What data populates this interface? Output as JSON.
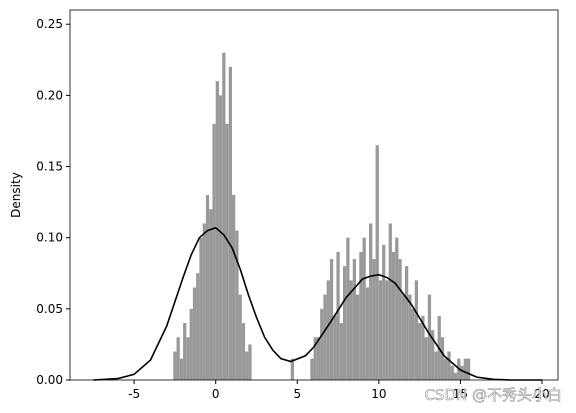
{
  "chart_data": {
    "type": "histogram",
    "ylabel": "Density",
    "watermark": "CSDN @不秀头小白",
    "bins": [
      -2.6,
      -2.4,
      -2.2,
      -2.0,
      -1.8,
      -1.6,
      -1.4,
      -1.2,
      -1.0,
      -0.8,
      -0.6,
      -0.4,
      -0.2,
      0.0,
      0.2,
      0.4,
      0.6,
      0.8,
      1.0,
      1.2,
      1.4,
      1.6,
      1.8,
      2.0,
      2.2,
      2.4,
      2.6,
      2.8,
      3.0,
      3.2,
      3.4,
      3.6,
      3.8,
      4.0,
      4.2,
      4.4,
      4.6,
      4.8,
      5.0,
      5.2,
      5.4,
      5.6,
      5.8,
      6.0,
      6.2,
      6.4,
      6.6,
      6.8,
      7.0,
      7.2,
      7.4,
      7.6,
      7.8,
      8.0,
      8.2,
      8.4,
      8.6,
      8.8,
      9.0,
      9.2,
      9.4,
      9.6,
      9.8,
      10.0,
      10.2,
      10.4,
      10.6,
      10.8,
      11.0,
      11.2,
      11.4,
      11.6,
      11.8,
      12.0,
      12.2,
      12.4,
      12.6,
      12.8,
      13.0,
      13.2,
      13.4,
      13.6,
      13.8,
      14.0,
      14.2,
      14.4,
      14.6,
      14.8,
      15.0,
      15.2,
      15.4,
      15.6
    ],
    "values": [
      0.02,
      0.03,
      0.015,
      0.04,
      0.03,
      0.05,
      0.065,
      0.075,
      0.1,
      0.11,
      0.13,
      0.12,
      0.18,
      0.21,
      0.2,
      0.23,
      0.18,
      0.22,
      0.13,
      0.105,
      0.06,
      0.04,
      0.02,
      0.025,
      0,
      0,
      0,
      0,
      0,
      0,
      0,
      0,
      0,
      0,
      0,
      0,
      0.015,
      0,
      0,
      0,
      0,
      0,
      0.015,
      0.03,
      0.03,
      0.05,
      0.06,
      0.07,
      0.085,
      0.045,
      0.09,
      0.04,
      0.08,
      0.1,
      0.07,
      0.085,
      0.06,
      0.09,
      0.1,
      0.065,
      0.11,
      0.085,
      0.165,
      0.07,
      0.095,
      0.07,
      0.11,
      0.09,
      0.1,
      0.085,
      0.06,
      0.08,
      0.06,
      0.05,
      0.07,
      0.04,
      0.045,
      0.03,
      0.06,
      0.035,
      0.02,
      0.045,
      0.03,
      0.015,
      0.02,
      0.01,
      0.005,
      0.015,
      0.01,
      0.015,
      0.015
    ],
    "color": "#999999",
    "kde": {
      "color": "#000000",
      "x": [
        -7.5,
        -6,
        -5,
        -4,
        -3,
        -2,
        -1.5,
        -1,
        -0.5,
        0,
        0.5,
        1,
        1.5,
        2,
        2.5,
        3,
        3.5,
        4,
        4.6,
        5.5,
        6,
        7,
        8,
        9,
        9.5,
        10,
        10.5,
        11,
        12,
        13,
        14,
        15,
        16,
        17,
        18,
        20
      ],
      "values": [
        0,
        0.001,
        0.004,
        0.014,
        0.038,
        0.072,
        0.088,
        0.1,
        0.105,
        0.107,
        0.102,
        0.093,
        0.078,
        0.06,
        0.044,
        0.03,
        0.021,
        0.015,
        0.013,
        0.017,
        0.023,
        0.04,
        0.058,
        0.071,
        0.073,
        0.074,
        0.072,
        0.068,
        0.053,
        0.034,
        0.017,
        0.007,
        0.002,
        0.0005,
        0,
        0
      ]
    },
    "xlim": [
      -8.93,
      20.98
    ],
    "ylim": [
      0,
      0.26
    ],
    "xticks": [
      -5,
      0,
      5,
      10,
      15,
      20
    ],
    "yticks": [
      {
        "value": 0,
        "label": "0.00"
      },
      {
        "value": 0.05,
        "label": "0.05"
      },
      {
        "value": 0.1,
        "label": "0.10"
      },
      {
        "value": 0.15,
        "label": "0.15"
      },
      {
        "value": 0.2,
        "label": "0.20"
      },
      {
        "value": 0.25,
        "label": "0.25"
      }
    ]
  }
}
